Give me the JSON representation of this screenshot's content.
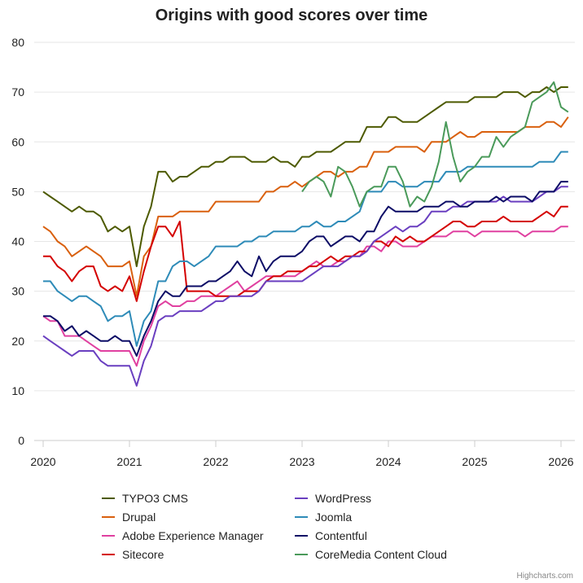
{
  "chart_data": {
    "type": "line",
    "title": "Origins with good scores over time",
    "xlabel": "",
    "ylabel": "",
    "ylim": [
      0,
      80
    ],
    "yticks": [
      0,
      10,
      20,
      30,
      40,
      50,
      60,
      70,
      80
    ],
    "xticks": [
      "2020",
      "2021",
      "2022",
      "2023",
      "2024",
      "2025",
      "2026"
    ],
    "x_start": "2020-01",
    "x_interval": "monthly",
    "grid": true,
    "legend_position": "bottom",
    "credit": "Highcharts.com",
    "series": [
      {
        "name": "TYPO3 CMS",
        "color": "#4d5a00",
        "values": [
          50,
          49,
          48,
          47,
          46,
          47,
          46,
          46,
          45,
          42,
          43,
          42,
          43,
          35,
          43,
          47,
          54,
          54,
          52,
          53,
          53,
          54,
          55,
          55,
          56,
          56,
          57,
          57,
          57,
          56,
          56,
          56,
          57,
          56,
          56,
          55,
          57,
          57,
          58,
          58,
          58,
          59,
          60,
          60,
          60,
          63,
          63,
          63,
          65,
          65,
          64,
          64,
          64,
          65,
          66,
          67,
          68,
          68,
          68,
          68,
          69,
          69,
          69,
          69,
          70,
          70,
          70,
          69,
          70,
          70,
          71,
          70,
          71,
          71
        ]
      },
      {
        "name": "Drupal",
        "color": "#d9600e",
        "values": [
          43,
          42,
          40,
          39,
          37,
          38,
          39,
          38,
          37,
          35,
          35,
          35,
          36,
          29,
          37,
          39,
          45,
          45,
          45,
          46,
          46,
          46,
          46,
          46,
          48,
          48,
          48,
          48,
          48,
          48,
          48,
          50,
          50,
          51,
          51,
          52,
          51,
          52,
          53,
          54,
          54,
          53,
          54,
          54,
          55,
          55,
          58,
          58,
          58,
          59,
          59,
          59,
          59,
          58,
          60,
          60,
          60,
          61,
          62,
          61,
          61,
          62,
          62,
          62,
          62,
          62,
          62,
          63,
          63,
          63,
          64,
          64,
          63,
          65
        ]
      },
      {
        "name": "Adobe Experience Manager",
        "color": "#e040a0",
        "values": [
          25,
          24,
          24,
          21,
          21,
          21,
          20,
          19,
          18,
          18,
          18,
          18,
          18,
          15,
          20,
          23,
          27,
          28,
          27,
          27,
          28,
          28,
          29,
          29,
          29,
          30,
          31,
          32,
          30,
          31,
          32,
          33,
          33,
          33,
          33,
          33,
          34,
          35,
          36,
          35,
          35,
          36,
          36,
          37,
          37,
          39,
          39,
          38,
          40,
          40,
          39,
          39,
          39,
          40,
          41,
          41,
          41,
          42,
          42,
          42,
          41,
          42,
          42,
          42,
          42,
          42,
          42,
          41,
          42,
          42,
          42,
          42,
          43,
          43
        ]
      },
      {
        "name": "Sitecore",
        "color": "#d40000",
        "values": [
          37,
          37,
          35,
          34,
          32,
          34,
          35,
          35,
          31,
          30,
          31,
          30,
          33,
          28,
          34,
          39,
          43,
          43,
          41,
          44,
          30,
          30,
          30,
          30,
          29,
          29,
          29,
          29,
          30,
          30,
          30,
          32,
          33,
          33,
          34,
          34,
          34,
          35,
          35,
          36,
          37,
          36,
          37,
          37,
          38,
          38,
          40,
          40,
          39,
          41,
          40,
          41,
          40,
          40,
          41,
          42,
          43,
          44,
          44,
          43,
          43,
          44,
          44,
          44,
          45,
          44,
          44,
          44,
          44,
          45,
          46,
          45,
          47,
          47
        ]
      },
      {
        "name": "WordPress",
        "color": "#6a3fc0",
        "values": [
          21,
          20,
          19,
          18,
          17,
          18,
          18,
          18,
          16,
          15,
          15,
          15,
          15,
          11,
          16,
          19,
          24,
          25,
          25,
          26,
          26,
          26,
          26,
          27,
          28,
          28,
          29,
          29,
          29,
          29,
          30,
          32,
          32,
          32,
          32,
          32,
          32,
          33,
          34,
          35,
          35,
          35,
          36,
          37,
          37,
          38,
          40,
          41,
          42,
          43,
          42,
          43,
          43,
          44,
          46,
          46,
          46,
          47,
          47,
          48,
          48,
          48,
          48,
          48,
          49,
          48,
          48,
          48,
          48,
          49,
          50,
          50,
          51,
          51
        ]
      },
      {
        "name": "Joomla",
        "color": "#2e8bb8",
        "values": [
          32,
          32,
          30,
          29,
          28,
          29,
          29,
          28,
          27,
          24,
          25,
          25,
          26,
          19,
          24,
          26,
          32,
          32,
          35,
          36,
          36,
          35,
          36,
          37,
          39,
          39,
          39,
          39,
          40,
          40,
          41,
          41,
          42,
          42,
          42,
          42,
          43,
          43,
          44,
          43,
          43,
          44,
          44,
          45,
          46,
          50,
          50,
          50,
          52,
          52,
          51,
          51,
          51,
          52,
          52,
          52,
          54,
          54,
          54,
          55,
          55,
          55,
          55,
          55,
          55,
          55,
          55,
          55,
          55,
          56,
          56,
          56,
          58,
          58
        ]
      },
      {
        "name": "Contentful",
        "color": "#0c0c66",
        "values": [
          25,
          25,
          24,
          22,
          23,
          21,
          22,
          21,
          20,
          20,
          21,
          20,
          20,
          17,
          21,
          24,
          28,
          30,
          29,
          29,
          31,
          31,
          31,
          32,
          32,
          33,
          34,
          36,
          34,
          33,
          37,
          34,
          36,
          37,
          37,
          37,
          38,
          40,
          41,
          41,
          39,
          40,
          41,
          41,
          40,
          42,
          42,
          45,
          47,
          46,
          46,
          46,
          46,
          47,
          47,
          47,
          48,
          48,
          47,
          47,
          48,
          48,
          48,
          49,
          48,
          49,
          49,
          49,
          48,
          50,
          50,
          50,
          52,
          52
        ]
      },
      {
        "name": "CoreMedia Content Cloud",
        "color": "#4a9a5a",
        "values": [
          null,
          null,
          null,
          null,
          null,
          null,
          null,
          null,
          null,
          null,
          null,
          null,
          null,
          null,
          null,
          null,
          null,
          null,
          null,
          null,
          null,
          null,
          null,
          null,
          null,
          null,
          null,
          null,
          null,
          null,
          null,
          null,
          null,
          null,
          null,
          null,
          50,
          52,
          53,
          52,
          49,
          55,
          54,
          51,
          47,
          50,
          51,
          51,
          55,
          55,
          52,
          47,
          49,
          48,
          51,
          56,
          64,
          57,
          52,
          54,
          55,
          57,
          57,
          61,
          59,
          61,
          62,
          63,
          68,
          69,
          70,
          72,
          67,
          66
        ]
      }
    ]
  }
}
